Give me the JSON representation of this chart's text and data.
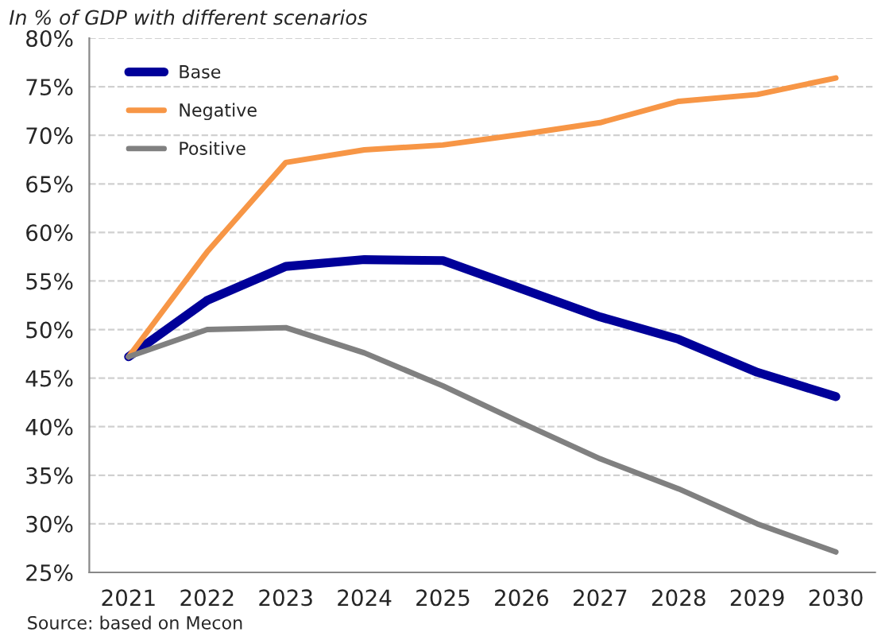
{
  "chart_data": {
    "type": "line",
    "title": "In % of GDP with different scenarios",
    "categories": [
      "2021",
      "2022",
      "2023",
      "2024",
      "2025",
      "2026",
      "2027",
      "2028",
      "2029",
      "2030"
    ],
    "series": [
      {
        "name": "Base",
        "color": "#000099",
        "values": [
          47.2,
          53.0,
          56.5,
          57.2,
          57.1,
          54.2,
          51.3,
          49.0,
          45.6,
          43.1
        ]
      },
      {
        "name": "Negative",
        "color": "#f79646",
        "values": [
          47.2,
          58.0,
          67.2,
          68.5,
          69.0,
          70.1,
          71.3,
          73.5,
          74.2,
          75.9
        ]
      },
      {
        "name": "Positive",
        "color": "#808080",
        "values": [
          47.2,
          50.0,
          50.2,
          47.6,
          44.2,
          40.4,
          36.7,
          33.6,
          30.0,
          27.1
        ]
      }
    ],
    "ylim": [
      25,
      80
    ],
    "yticks": [
      {
        "value": 25,
        "label": "25%"
      },
      {
        "value": 30,
        "label": "30%"
      },
      {
        "value": 35,
        "label": "35%"
      },
      {
        "value": 40,
        "label": "40%"
      },
      {
        "value": 45,
        "label": "45%"
      },
      {
        "value": 50,
        "label": "50%"
      },
      {
        "value": 55,
        "label": "55%"
      },
      {
        "value": 60,
        "label": "60%"
      },
      {
        "value": 65,
        "label": "65%"
      },
      {
        "value": 70,
        "label": "70%"
      },
      {
        "value": 75,
        "label": "75%"
      },
      {
        "value": 80,
        "label": "80%"
      }
    ],
    "grid": "y",
    "legend": "top left",
    "line_style": "solid",
    "marker": "none",
    "annotations": [
      "Source: based on Mecon"
    ]
  }
}
